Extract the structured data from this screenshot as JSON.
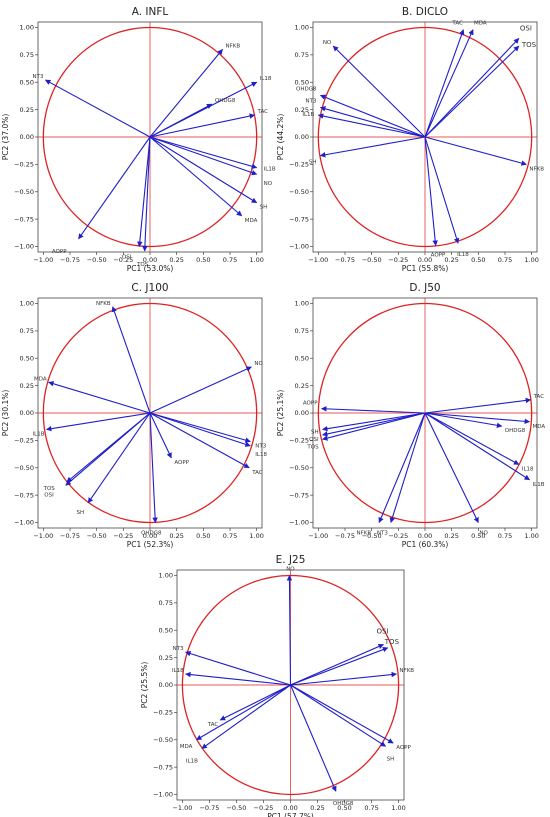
{
  "figure": {
    "layout": "3 rows: A, B / C, D / E centered"
  },
  "chart_data": [
    {
      "type": "scatter",
      "subtype": "pca-correlation-circle",
      "panel": "A",
      "title": "A. INFL",
      "xlabel": "PC1 (53.0%)",
      "ylabel": "PC2 (37.0%)",
      "xlim": [
        -1.05,
        1.05
      ],
      "ylim": [
        -1.05,
        1.05
      ],
      "xticks": [
        "−1.00",
        "−0.75",
        "−0.50",
        "−0.25",
        "0.00",
        "0.25",
        "0.50",
        "0.75",
        "1.00"
      ],
      "yticks": [
        "1.00",
        "0.75",
        "0.50",
        "0.25",
        "0.00",
        "−0.25",
        "−0.50",
        "−0.75",
        "−1.00"
      ],
      "circle_color": "#dd2222",
      "arrow_color": "#1f1fc8",
      "vectors": [
        {
          "name": "NFKB",
          "x": 0.68,
          "y": 0.8
        },
        {
          "name": "IL18",
          "x": 1.0,
          "y": 0.5
        },
        {
          "name": "OHDG8",
          "x": 0.58,
          "y": 0.3
        },
        {
          "name": "TAC",
          "x": 0.98,
          "y": 0.2
        },
        {
          "name": "NT3",
          "x": -0.98,
          "y": 0.52
        },
        {
          "name": "IL1B",
          "x": 1.0,
          "y": -0.28
        },
        {
          "name": "NO",
          "x": 1.0,
          "y": -0.34
        },
        {
          "name": "SH",
          "x": 1.0,
          "y": -0.6
        },
        {
          "name": "MDA",
          "x": 0.86,
          "y": -0.72
        },
        {
          "name": "AOPP",
          "x": -0.67,
          "y": -0.93
        },
        {
          "name": "OSI",
          "x": -0.1,
          "y": -1.0
        },
        {
          "name": "TOS",
          "x": -0.05,
          "y": -1.04
        }
      ]
    },
    {
      "type": "scatter",
      "subtype": "pca-correlation-circle",
      "panel": "B",
      "title": "B. DICLO",
      "xlabel": "PC1 (55.8%)",
      "ylabel": "PC2 (44.2%)",
      "xlim": [
        -1.05,
        1.05
      ],
      "ylim": [
        -1.05,
        1.05
      ],
      "xticks": [
        "−1.00",
        "−0.75",
        "−0.50",
        "−0.25",
        "0.00",
        "0.25",
        "0.50",
        "0.75",
        "1.00"
      ],
      "yticks": [
        "1.00",
        "0.75",
        "0.50",
        "0.25",
        "0.00",
        "−0.25",
        "−0.50",
        "−0.75",
        "−1.00"
      ],
      "circle_color": "#dd2222",
      "arrow_color": "#1f1fc8",
      "vectors": [
        {
          "name": "NO",
          "x": -0.86,
          "y": 0.83
        },
        {
          "name": "TAC",
          "x": 0.36,
          "y": 0.98
        },
        {
          "name": "MDA",
          "x": 0.45,
          "y": 0.98
        },
        {
          "name": "OSI",
          "x": 0.88,
          "y": 0.9
        },
        {
          "name": "TOS",
          "x": 0.88,
          "y": 0.83
        },
        {
          "name": "OHDG8",
          "x": -0.98,
          "y": 0.38
        },
        {
          "name": "NT3",
          "x": -0.98,
          "y": 0.27
        },
        {
          "name": "IL1B",
          "x": -1.0,
          "y": 0.2
        },
        {
          "name": "SH",
          "x": -0.98,
          "y": -0.17
        },
        {
          "name": "NFKB",
          "x": 0.95,
          "y": -0.25
        },
        {
          "name": "AOPP",
          "x": 0.1,
          "y": -0.99
        },
        {
          "name": "IL18",
          "x": 0.31,
          "y": -0.97
        }
      ]
    },
    {
      "type": "scatter",
      "subtype": "pca-correlation-circle",
      "panel": "C",
      "title": "C. J100",
      "xlabel": "PC1 (52.3%)",
      "ylabel": "PC2 (30.1%)",
      "xlim": [
        -1.05,
        1.05
      ],
      "ylim": [
        -1.05,
        1.05
      ],
      "xticks": [
        "−1.00",
        "−0.75",
        "−0.50",
        "−0.25",
        "0.00",
        "0.25",
        "0.50",
        "0.75",
        "1.00"
      ],
      "yticks": [
        "1.00",
        "0.75",
        "0.50",
        "0.25",
        "0.00",
        "−0.25",
        "−0.50",
        "−0.75",
        "−1.00"
      ],
      "circle_color": "#dd2222",
      "arrow_color": "#1f1fc8",
      "vectors": [
        {
          "name": "NFKB",
          "x": -0.35,
          "y": 0.97
        },
        {
          "name": "NO",
          "x": 0.95,
          "y": 0.42
        },
        {
          "name": "MDA",
          "x": -0.95,
          "y": 0.28
        },
        {
          "name": "IL1B",
          "x": -0.97,
          "y": -0.15
        },
        {
          "name": "NT3",
          "x": 0.94,
          "y": -0.26
        },
        {
          "name": "IL18",
          "x": 0.94,
          "y": -0.3
        },
        {
          "name": "TAC",
          "x": 0.93,
          "y": -0.5
        },
        {
          "name": "AOPP",
          "x": 0.2,
          "y": -0.41
        },
        {
          "name": "TOS",
          "x": -0.78,
          "y": -0.63
        },
        {
          "name": "OSI",
          "x": -0.79,
          "y": -0.66
        },
        {
          "name": "SH",
          "x": -0.58,
          "y": -0.82
        },
        {
          "name": "OHDG8",
          "x": 0.05,
          "y": -1.0
        }
      ]
    },
    {
      "type": "scatter",
      "subtype": "pca-correlation-circle",
      "panel": "D",
      "title": "D. J50",
      "xlabel": "PC1 (60.3%)",
      "ylabel": "PC2 (25.1%)",
      "xlim": [
        -1.05,
        1.05
      ],
      "ylim": [
        -1.05,
        1.05
      ],
      "xticks": [
        "−1.00",
        "−0.75",
        "−0.50",
        "−0.25",
        "0.00",
        "0.25",
        "0.50",
        "0.75",
        "1.00"
      ],
      "yticks": [
        "1.00",
        "0.75",
        "0.50",
        "0.25",
        "0.00",
        "−0.25",
        "−0.50",
        "−0.75",
        "−1.00"
      ],
      "circle_color": "#dd2222",
      "arrow_color": "#1f1fc8",
      "vectors": [
        {
          "name": "TAC",
          "x": 0.99,
          "y": 0.12
        },
        {
          "name": "MDA",
          "x": 0.98,
          "y": -0.08
        },
        {
          "name": "OHDG8",
          "x": 0.72,
          "y": -0.12
        },
        {
          "name": "AOPP",
          "x": -0.97,
          "y": 0.04
        },
        {
          "name": "SH",
          "x": -0.96,
          "y": -0.15
        },
        {
          "name": "OSI",
          "x": -0.96,
          "y": -0.2
        },
        {
          "name": "TOS",
          "x": -0.96,
          "y": -0.24
        },
        {
          "name": "IL18",
          "x": 0.88,
          "y": -0.47
        },
        {
          "name": "IL1B",
          "x": 0.98,
          "y": -0.61
        },
        {
          "name": "NFKB",
          "x": -0.43,
          "y": -1.0
        },
        {
          "name": "NT3",
          "x": -0.32,
          "y": -1.0
        },
        {
          "name": "NO",
          "x": 0.5,
          "y": -1.0
        }
      ]
    },
    {
      "type": "scatter",
      "subtype": "pca-correlation-circle",
      "panel": "E",
      "title": "E. J25",
      "xlabel": "PC1 (57.7%)",
      "ylabel": "PC2 (25.5%)",
      "xlim": [
        -1.05,
        1.05
      ],
      "ylim": [
        -1.05,
        1.05
      ],
      "xticks": [
        "−1.00",
        "−0.75",
        "−0.50",
        "−0.25",
        "0.00",
        "0.25",
        "0.50",
        "0.75",
        "1.00"
      ],
      "yticks": [
        "1.00",
        "0.75",
        "0.50",
        "0.25",
        "0.00",
        "−0.25",
        "−0.50",
        "−0.75",
        "−1.00"
      ],
      "circle_color": "#dd2222",
      "arrow_color": "#1f1fc8",
      "vectors": [
        {
          "name": "NO",
          "x": -0.01,
          "y": 1.0
        },
        {
          "name": "NT3",
          "x": -0.97,
          "y": 0.3
        },
        {
          "name": "IL18",
          "x": -0.97,
          "y": 0.1
        },
        {
          "name": "OSI",
          "x": 0.86,
          "y": 0.37
        },
        {
          "name": "TOS",
          "x": 0.9,
          "y": 0.34
        },
        {
          "name": "NFKB",
          "x": 0.98,
          "y": 0.1
        },
        {
          "name": "TAC",
          "x": -0.65,
          "y": -0.32
        },
        {
          "name": "MDA",
          "x": -0.87,
          "y": -0.5
        },
        {
          "name": "IL1B",
          "x": -0.82,
          "y": -0.58
        },
        {
          "name": "AOPP",
          "x": 0.95,
          "y": -0.53
        },
        {
          "name": "SH",
          "x": 0.88,
          "y": -0.56
        },
        {
          "name": "OHDG8",
          "x": 0.42,
          "y": -0.97
        }
      ]
    }
  ]
}
